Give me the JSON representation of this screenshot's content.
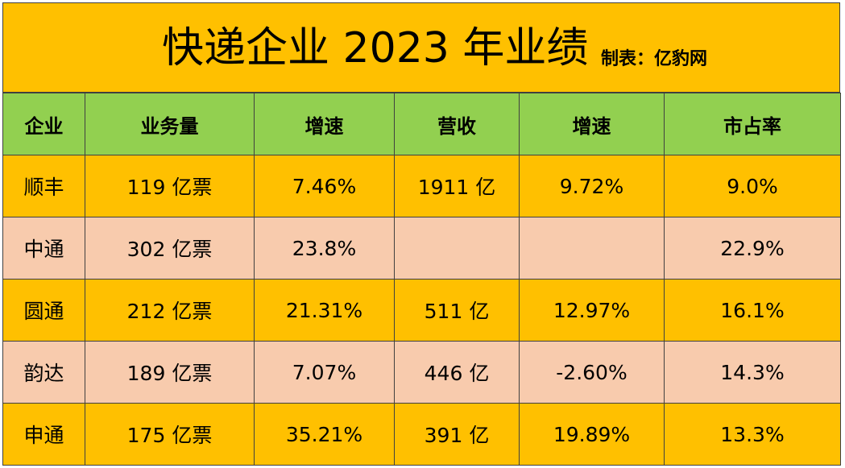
{
  "title": "快递企业 2023 年业绩",
  "credit": "制表：亿豹网",
  "colors": {
    "title_bg": "#ffc000",
    "header_bg": "#92d050",
    "row_gold": "#ffc000",
    "row_peach": "#f8cbad",
    "border": "#404040"
  },
  "headers": [
    "企业",
    "业务量",
    "增速",
    "营收",
    "增速",
    "市占率"
  ],
  "rows": [
    {
      "company": "顺丰",
      "volume": "119 亿票",
      "volume_growth": "7.46%",
      "revenue": "1911 亿",
      "revenue_growth": "9.72%",
      "share": "9.0%"
    },
    {
      "company": "中通",
      "volume": "302 亿票",
      "volume_growth": "23.8%",
      "revenue": "",
      "revenue_growth": "",
      "share": "22.9%"
    },
    {
      "company": "圆通",
      "volume": "212 亿票",
      "volume_growth": "21.31%",
      "revenue": "511 亿",
      "revenue_growth": "12.97%",
      "share": "16.1%"
    },
    {
      "company": "韵达",
      "volume": "189 亿票",
      "volume_growth": "7.07%",
      "revenue": "446 亿",
      "revenue_growth": "-2.60%",
      "share": "14.3%"
    },
    {
      "company": "申通",
      "volume": "175 亿票",
      "volume_growth": "35.21%",
      "revenue": "391 亿",
      "revenue_growth": "19.89%",
      "share": "13.3%"
    }
  ]
}
